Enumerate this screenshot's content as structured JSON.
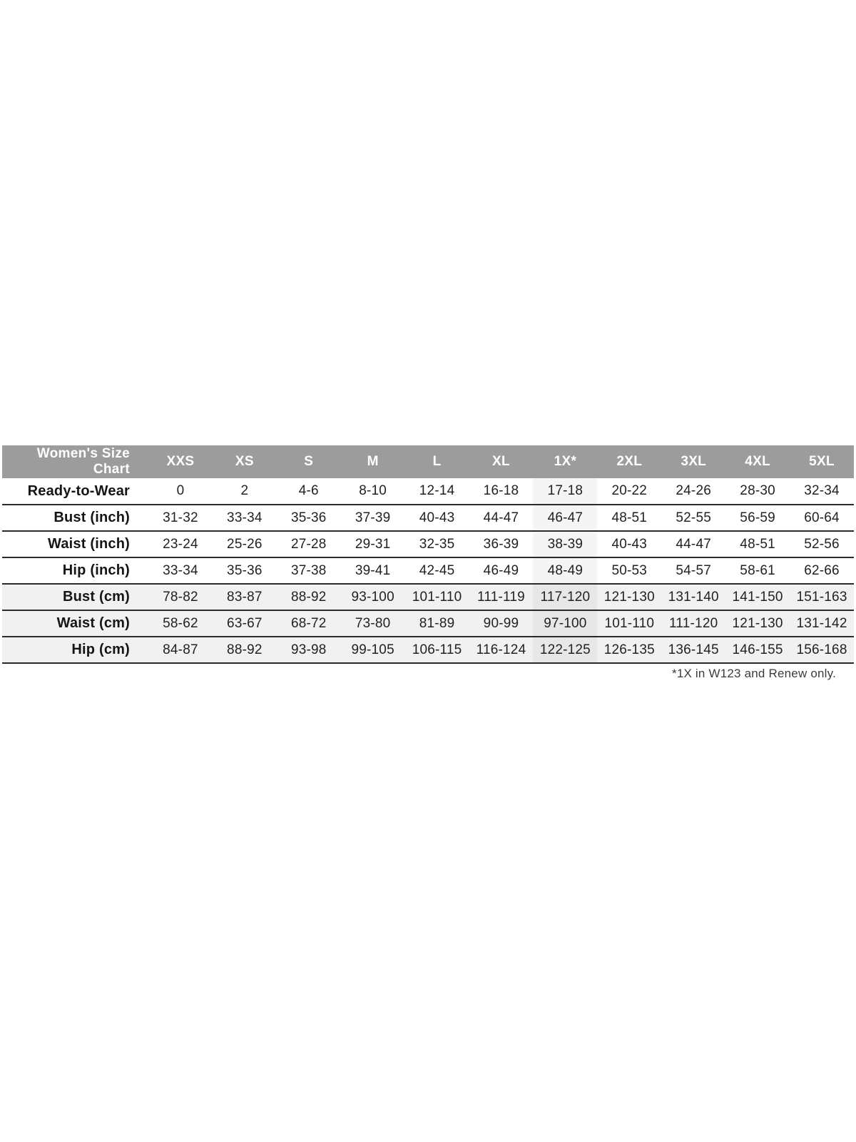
{
  "theme": {
    "header_bg": "#9c9c9c",
    "header_text": "#ffffff",
    "row_shade_bg": "#f1f1f1",
    "highlight_bg": "#f5f5f5",
    "highlight_shade_bg": "#e7e7e7",
    "border_color": "#2b2b2b",
    "label_text": "#151515",
    "value_text": "#222222",
    "footnote_text": "#3c3c3c",
    "page_bg": "#ffffff"
  },
  "size_chart": {
    "title": "Women's Size Chart",
    "columns": [
      "XXS",
      "XS",
      "S",
      "M",
      "L",
      "XL",
      "1X*",
      "2XL",
      "3XL",
      "4XL",
      "5XL"
    ],
    "highlight_column_index": 6,
    "rows": [
      {
        "label": "Ready-to-Wear",
        "shaded": false,
        "values": [
          "0",
          "2",
          "4-6",
          "8-10",
          "12-14",
          "16-18",
          "17-18",
          "20-22",
          "24-26",
          "28-30",
          "32-34"
        ]
      },
      {
        "label": "Bust (inch)",
        "shaded": false,
        "values": [
          "31-32",
          "33-34",
          "35-36",
          "37-39",
          "40-43",
          "44-47",
          "46-47",
          "48-51",
          "52-55",
          "56-59",
          "60-64"
        ]
      },
      {
        "label": "Waist (inch)",
        "shaded": false,
        "values": [
          "23-24",
          "25-26",
          "27-28",
          "29-31",
          "32-35",
          "36-39",
          "38-39",
          "40-43",
          "44-47",
          "48-51",
          "52-56"
        ]
      },
      {
        "label": "Hip (inch)",
        "shaded": false,
        "values": [
          "33-34",
          "35-36",
          "37-38",
          "39-41",
          "42-45",
          "46-49",
          "48-49",
          "50-53",
          "54-57",
          "58-61",
          "62-66"
        ]
      },
      {
        "label": "Bust (cm)",
        "shaded": true,
        "values": [
          "78-82",
          "83-87",
          "88-92",
          "93-100",
          "101-110",
          "111-119",
          "117-120",
          "121-130",
          "131-140",
          "141-150",
          "151-163"
        ]
      },
      {
        "label": "Waist (cm)",
        "shaded": true,
        "values": [
          "58-62",
          "63-67",
          "68-72",
          "73-80",
          "81-89",
          "90-99",
          "97-100",
          "101-110",
          "111-120",
          "121-130",
          "131-142"
        ]
      },
      {
        "label": "Hip (cm)",
        "shaded": true,
        "values": [
          "84-87",
          "88-92",
          "93-98",
          "99-105",
          "106-115",
          "116-124",
          "122-125",
          "126-135",
          "136-145",
          "146-155",
          "156-168"
        ]
      }
    ],
    "footnote": "*1X in W123 and Renew only."
  }
}
